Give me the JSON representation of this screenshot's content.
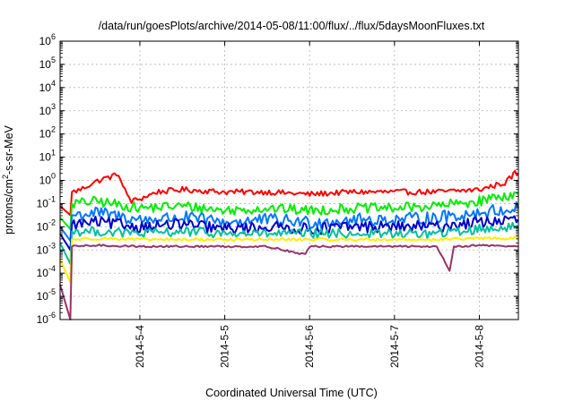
{
  "chart_data": {
    "type": "line",
    "title": "/data/run/goesPlots/archive/2014-05-08/11:00/flux/../flux/5daysMoonFluxes.txt",
    "xlabel": "Coordinated Universal Time (UTC)",
    "ylabel": {
      "base": "protons/cm",
      "sup": "2",
      "rest": "-s-sr-MeV"
    },
    "y_scale": "log",
    "ylim_exp": [
      -6,
      6
    ],
    "y_ticks": [
      {
        "exp": -6,
        "label": "-6"
      },
      {
        "exp": -5,
        "label": "-5"
      },
      {
        "exp": -4,
        "label": "-4"
      },
      {
        "exp": -3,
        "label": "-3"
      },
      {
        "exp": -2,
        "label": "-2"
      },
      {
        "exp": -1,
        "label": "-1"
      },
      {
        "exp": 0,
        "label": "0"
      },
      {
        "exp": 1,
        "label": "1"
      },
      {
        "exp": 2,
        "label": "2"
      },
      {
        "exp": 3,
        "label": "3"
      },
      {
        "exp": 4,
        "label": "4"
      },
      {
        "exp": 5,
        "label": "5"
      },
      {
        "exp": 6,
        "label": "6"
      }
    ],
    "x_ticks": [
      {
        "day": 4,
        "label": "2014-5-4"
      },
      {
        "day": 5,
        "label": "2014-5-5"
      },
      {
        "day": 6,
        "label": "2014-5-6"
      },
      {
        "day": 7,
        "label": "2014-5-7"
      },
      {
        "day": 8,
        "label": "2014-5-8"
      }
    ],
    "xlim_day": [
      3.06,
      8.46
    ],
    "grid": true,
    "series": [
      {
        "color": "#ff0000",
        "points": [
          [
            3.06,
            -1.1
          ],
          [
            3.18,
            -1.5
          ],
          [
            3.2,
            -0.5
          ],
          [
            3.3,
            -0.4
          ],
          [
            3.45,
            -0.1
          ],
          [
            3.6,
            0.1
          ],
          [
            3.7,
            0.2
          ],
          [
            3.75,
            0.3
          ],
          [
            3.8,
            -0.3
          ],
          [
            3.9,
            -0.9
          ],
          [
            4.0,
            -0.8
          ],
          [
            4.2,
            -0.5
          ],
          [
            4.5,
            -0.4
          ],
          [
            5.0,
            -0.5
          ],
          [
            5.5,
            -0.5
          ],
          [
            6.0,
            -0.6
          ],
          [
            6.5,
            -0.5
          ],
          [
            7.0,
            -0.5
          ],
          [
            7.5,
            -0.5
          ],
          [
            8.0,
            -0.4
          ],
          [
            8.2,
            -0.2
          ],
          [
            8.3,
            -0.1
          ],
          [
            8.38,
            0.15
          ],
          [
            8.42,
            0.35
          ],
          [
            8.46,
            0.25
          ]
        ]
      },
      {
        "color": "#00ee00",
        "points": [
          [
            3.06,
            -1.6
          ],
          [
            3.18,
            -2.1
          ],
          [
            3.2,
            -1.0
          ],
          [
            3.5,
            -0.9
          ],
          [
            4.0,
            -1.2
          ],
          [
            4.5,
            -1.1
          ],
          [
            5.0,
            -1.3
          ],
          [
            5.5,
            -1.2
          ],
          [
            6.0,
            -1.3
          ],
          [
            6.5,
            -1.2
          ],
          [
            7.0,
            -1.2
          ],
          [
            7.5,
            -1.1
          ],
          [
            8.0,
            -0.9
          ],
          [
            8.2,
            -0.7
          ],
          [
            8.46,
            -0.6
          ]
        ]
      },
      {
        "color": "#0077ff",
        "points": [
          [
            3.06,
            -2.0
          ],
          [
            3.18,
            -2.6
          ],
          [
            3.2,
            -1.5
          ],
          [
            3.5,
            -1.4
          ],
          [
            4.0,
            -1.7
          ],
          [
            4.5,
            -1.6
          ],
          [
            5.0,
            -1.8
          ],
          [
            5.5,
            -1.7
          ],
          [
            6.0,
            -1.8
          ],
          [
            6.5,
            -1.7
          ],
          [
            7.0,
            -1.7
          ],
          [
            7.5,
            -1.6
          ],
          [
            8.0,
            -1.4
          ],
          [
            8.46,
            -1.2
          ]
        ]
      },
      {
        "color": "#0000cc",
        "points": [
          [
            3.06,
            -2.3
          ],
          [
            3.18,
            -3.0
          ],
          [
            3.2,
            -1.9
          ],
          [
            3.5,
            -1.8
          ],
          [
            4.0,
            -2.0
          ],
          [
            4.5,
            -1.9
          ],
          [
            5.0,
            -2.1
          ],
          [
            5.5,
            -2.0
          ],
          [
            6.0,
            -2.1
          ],
          [
            6.5,
            -2.0
          ],
          [
            7.0,
            -2.0
          ],
          [
            7.5,
            -2.0
          ],
          [
            8.0,
            -1.8
          ],
          [
            8.46,
            -1.7
          ]
        ]
      },
      {
        "color": "#00c0a0",
        "points": [
          [
            3.06,
            -2.7
          ],
          [
            3.18,
            -3.6
          ],
          [
            3.2,
            -2.2
          ],
          [
            3.5,
            -2.2
          ],
          [
            4.0,
            -2.3
          ],
          [
            4.5,
            -2.2
          ],
          [
            5.0,
            -2.3
          ],
          [
            5.5,
            -2.3
          ],
          [
            6.0,
            -2.3
          ],
          [
            6.5,
            -2.3
          ],
          [
            7.0,
            -2.3
          ],
          [
            7.5,
            -2.3
          ],
          [
            8.0,
            -2.1
          ],
          [
            8.46,
            -2.0
          ]
        ]
      },
      {
        "color": "#ffee00",
        "points": [
          [
            3.06,
            -3.4
          ],
          [
            3.18,
            -4.4
          ],
          [
            3.2,
            -2.55
          ],
          [
            3.5,
            -2.5
          ],
          [
            4.0,
            -2.55
          ],
          [
            4.5,
            -2.55
          ],
          [
            5.0,
            -2.55
          ],
          [
            5.5,
            -2.55
          ],
          [
            6.0,
            -2.55
          ],
          [
            6.5,
            -2.55
          ],
          [
            7.0,
            -2.55
          ],
          [
            7.5,
            -2.55
          ],
          [
            8.0,
            -2.5
          ],
          [
            8.46,
            -2.5
          ]
        ]
      },
      {
        "color": "#993366",
        "points": [
          [
            3.06,
            -4.5
          ],
          [
            3.18,
            -6.0
          ],
          [
            3.2,
            -2.85
          ],
          [
            3.5,
            -2.8
          ],
          [
            4.0,
            -2.85
          ],
          [
            4.5,
            -2.85
          ],
          [
            5.0,
            -2.85
          ],
          [
            5.5,
            -2.85
          ],
          [
            5.95,
            -3.2
          ],
          [
            6.0,
            -2.85
          ],
          [
            6.5,
            -2.85
          ],
          [
            7.0,
            -2.85
          ],
          [
            7.5,
            -2.85
          ],
          [
            7.65,
            -3.9
          ],
          [
            7.7,
            -2.85
          ],
          [
            8.0,
            -2.8
          ],
          [
            8.46,
            -2.85
          ]
        ]
      }
    ]
  }
}
